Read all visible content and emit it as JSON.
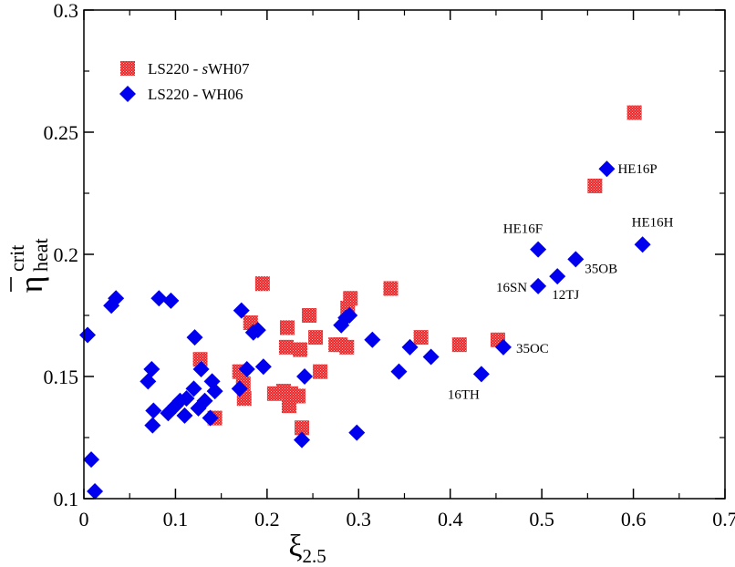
{
  "chart_data": {
    "type": "scatter",
    "title": "",
    "xlabel": "ξ",
    "xlabel_sub": "2.5",
    "ylabel": "η",
    "ylabel_sub": "heat",
    "ylabel_sup": "crit",
    "xlim": [
      0,
      0.7
    ],
    "ylim": [
      0.1,
      0.3
    ],
    "xticks": [
      0,
      0.1,
      0.2,
      0.3,
      0.4,
      0.5,
      0.6,
      0.7
    ],
    "xtick_labels": [
      "0",
      "0.1",
      "0.2",
      "0.3",
      "0.4",
      "0.5",
      "0.6",
      "0.7"
    ],
    "yticks": [
      0.1,
      0.15,
      0.2,
      0.25,
      0.3
    ],
    "ytick_labels": [
      "0.1",
      "0.15",
      "0.2",
      "0.25",
      "0.3"
    ],
    "grid": false,
    "legend_position": "top-left",
    "legend": [
      {
        "label_prefix": "LS220 - ",
        "label_italic": "s",
        "label_suffix": "WH07",
        "marker": "square",
        "color": "#e8282a"
      },
      {
        "label_prefix": "LS220 - WH06",
        "label_italic": "",
        "label_suffix": "",
        "marker": "diamond",
        "color": "#0000ee"
      }
    ],
    "series": [
      {
        "name": "LS220 - sWH07",
        "marker": "square",
        "color": "#e8282a",
        "points": [
          [
            0.127,
            0.157
          ],
          [
            0.143,
            0.133
          ],
          [
            0.17,
            0.152
          ],
          [
            0.174,
            0.147
          ],
          [
            0.175,
            0.141
          ],
          [
            0.182,
            0.172
          ],
          [
            0.195,
            0.188
          ],
          [
            0.208,
            0.143
          ],
          [
            0.218,
            0.144
          ],
          [
            0.221,
            0.162
          ],
          [
            0.222,
            0.17
          ],
          [
            0.224,
            0.138
          ],
          [
            0.226,
            0.143
          ],
          [
            0.234,
            0.142
          ],
          [
            0.236,
            0.161
          ],
          [
            0.238,
            0.129
          ],
          [
            0.246,
            0.175
          ],
          [
            0.253,
            0.166
          ],
          [
            0.258,
            0.152
          ],
          [
            0.275,
            0.163
          ],
          [
            0.28,
            0.163
          ],
          [
            0.287,
            0.162
          ],
          [
            0.288,
            0.178
          ],
          [
            0.291,
            0.182
          ],
          [
            0.335,
            0.186
          ],
          [
            0.368,
            0.166
          ],
          [
            0.41,
            0.163
          ],
          [
            0.452,
            0.165
          ],
          [
            0.558,
            0.228
          ],
          [
            0.601,
            0.258
          ]
        ]
      },
      {
        "name": "LS220 - WH06",
        "marker": "diamond",
        "color": "#0000ee",
        "points": [
          [
            0.004,
            0.167
          ],
          [
            0.008,
            0.116
          ],
          [
            0.012,
            0.103
          ],
          [
            0.03,
            0.179
          ],
          [
            0.035,
            0.182
          ],
          [
            0.07,
            0.148
          ],
          [
            0.074,
            0.153
          ],
          [
            0.075,
            0.13
          ],
          [
            0.076,
            0.136
          ],
          [
            0.082,
            0.182
          ],
          [
            0.092,
            0.135
          ],
          [
            0.095,
            0.181
          ],
          [
            0.1,
            0.138
          ],
          [
            0.105,
            0.14
          ],
          [
            0.11,
            0.134
          ],
          [
            0.112,
            0.141
          ],
          [
            0.12,
            0.145
          ],
          [
            0.121,
            0.166
          ],
          [
            0.125,
            0.137
          ],
          [
            0.128,
            0.153
          ],
          [
            0.132,
            0.14
          ],
          [
            0.138,
            0.133
          ],
          [
            0.14,
            0.148
          ],
          [
            0.143,
            0.144
          ],
          [
            0.17,
            0.145
          ],
          [
            0.172,
            0.177
          ],
          [
            0.178,
            0.153
          ],
          [
            0.185,
            0.168
          ],
          [
            0.19,
            0.169
          ],
          [
            0.196,
            0.154
          ],
          [
            0.238,
            0.124
          ],
          [
            0.241,
            0.15
          ],
          [
            0.281,
            0.171
          ],
          [
            0.286,
            0.174
          ],
          [
            0.29,
            0.175
          ],
          [
            0.298,
            0.127
          ],
          [
            0.315,
            0.165
          ],
          [
            0.344,
            0.152
          ],
          [
            0.356,
            0.162
          ],
          [
            0.379,
            0.158
          ],
          [
            0.434,
            0.151
          ],
          [
            0.458,
            0.162
          ],
          [
            0.496,
            0.187
          ],
          [
            0.496,
            0.202
          ],
          [
            0.517,
            0.191
          ],
          [
            0.537,
            0.198
          ],
          [
            0.571,
            0.235
          ],
          [
            0.61,
            0.204
          ]
        ]
      }
    ],
    "annotations": [
      {
        "text": "HE16P",
        "x": 0.571,
        "y": 0.235,
        "anchor": "start"
      },
      {
        "text": "HE16F",
        "x": 0.496,
        "y": 0.202,
        "anchor": "end"
      },
      {
        "text": "HE16H",
        "x": 0.61,
        "y": 0.204,
        "anchor": "start"
      },
      {
        "text": "35OB",
        "x": 0.537,
        "y": 0.198,
        "anchor": "start"
      },
      {
        "text": "16SN",
        "x": 0.496,
        "y": 0.187,
        "anchor": "end"
      },
      {
        "text": "12TJ",
        "x": 0.517,
        "y": 0.191,
        "anchor": "start"
      },
      {
        "text": "35OC",
        "x": 0.458,
        "y": 0.162,
        "anchor": "start"
      },
      {
        "text": "16TH",
        "x": 0.434,
        "y": 0.151,
        "anchor": "end"
      }
    ]
  }
}
